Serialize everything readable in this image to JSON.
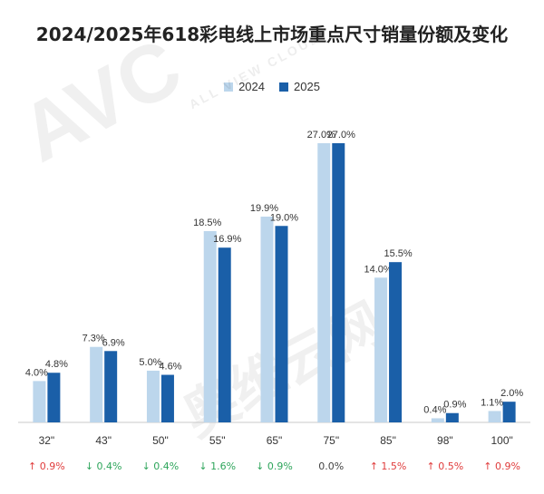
{
  "title": "2024/2025年618彩电线上市场重点尺寸销量份额及变化",
  "watermark": {
    "logo": "AVC",
    "sub": "ALL VIEW CLOUD",
    "cn": "奥维云网"
  },
  "colors": {
    "2024": "#bcd6ec",
    "2025": "#1a5fa8",
    "up": "#e03c3c",
    "down": "#2ea55b",
    "flat": "#444444"
  },
  "chart_data": {
    "type": "bar",
    "title": "2024/2025年618彩电线上市场重点尺寸销量份额及变化",
    "categories": [
      "32\"",
      "43\"",
      "50\"",
      "55\"",
      "65\"",
      "75\"",
      "85\"",
      "98\"",
      "100\""
    ],
    "series": [
      {
        "name": "2024",
        "values": [
          4.0,
          7.3,
          5.0,
          18.5,
          19.9,
          27.0,
          14.0,
          0.4,
          1.1
        ],
        "labels": [
          "4.0%",
          "7.3%",
          "5.0%",
          "18.5%",
          "19.9%",
          "27.0%",
          "14.0%",
          "0.4%",
          "1.1%"
        ]
      },
      {
        "name": "2025",
        "values": [
          4.8,
          6.9,
          4.6,
          16.9,
          19.0,
          27.0,
          15.5,
          0.9,
          2.0
        ],
        "labels": [
          "4.8%",
          "6.9%",
          "4.6%",
          "16.9%",
          "19.0%",
          "27.0%",
          "15.5%",
          "0.9%",
          "2.0%"
        ]
      }
    ],
    "changes": [
      {
        "text": "↑ 0.9%",
        "dir": "up"
      },
      {
        "text": "↓ 0.4%",
        "dir": "down"
      },
      {
        "text": "↓ 0.4%",
        "dir": "down"
      },
      {
        "text": "↓ 1.6%",
        "dir": "down"
      },
      {
        "text": "↓ 0.9%",
        "dir": "down"
      },
      {
        "text": "0.0%",
        "dir": "flat"
      },
      {
        "text": "↑ 1.5%",
        "dir": "up"
      },
      {
        "text": "↑ 0.5%",
        "dir": "up"
      },
      {
        "text": "↑ 0.9%",
        "dir": "up"
      }
    ],
    "ylim": [
      0,
      27.0
    ],
    "grid": false,
    "legend_position": "top-center"
  }
}
